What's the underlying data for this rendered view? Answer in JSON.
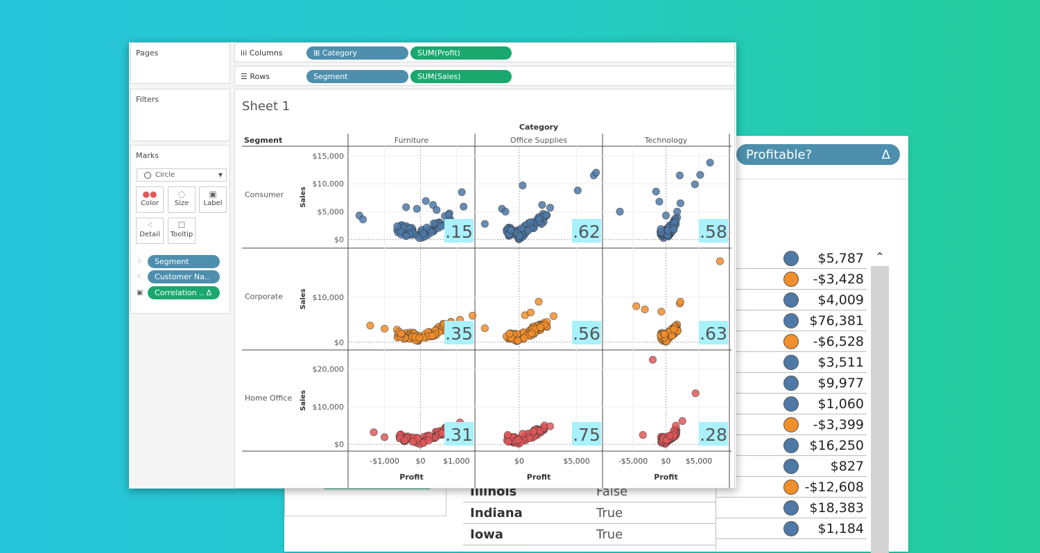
{
  "colors": {
    "consumer": "#4e79a7",
    "corporate": "#f28e2b",
    "home_office": "#e15759",
    "highlight": "#a8f1fd",
    "pill_blue": "#4d8fad",
    "pill_green": "#1aa86e"
  },
  "back_panel": {
    "profitable_pill": "Profitable?",
    "delta_icon": "Δ",
    "scroll_up_icon": "chevron-up-icon",
    "values": [
      {
        "amount": "$5,787",
        "profitable": true
      },
      {
        "amount": "-$3,428",
        "profitable": false
      },
      {
        "amount": "$4,009",
        "profitable": true
      },
      {
        "amount": "$76,381",
        "profitable": true
      },
      {
        "amount": "-$6,528",
        "profitable": false
      },
      {
        "amount": "$3,511",
        "profitable": true
      },
      {
        "amount": "$9,977",
        "profitable": true
      },
      {
        "amount": "$1,060",
        "profitable": true
      },
      {
        "amount": "-$3,399",
        "profitable": false
      },
      {
        "amount": "$16,250",
        "profitable": true
      },
      {
        "amount": "$827",
        "profitable": true
      },
      {
        "amount": "-$12,608",
        "profitable": false
      },
      {
        "amount": "$18,383",
        "profitable": true
      },
      {
        "amount": "$1,184",
        "profitable": true
      }
    ],
    "states": [
      {
        "name": "Illinois",
        "value": "False"
      },
      {
        "name": "Indiana",
        "value": "True"
      },
      {
        "name": "Iowa",
        "value": "True"
      }
    ]
  },
  "pages": {
    "title": "Pages"
  },
  "filters": {
    "title": "Filters"
  },
  "marks": {
    "title": "Marks",
    "mark_type": "Circle",
    "buttons": [
      {
        "label": "Color",
        "icon": "color-icon"
      },
      {
        "label": "Size",
        "icon": "size-icon"
      },
      {
        "label": "Label",
        "icon": "label-icon"
      },
      {
        "label": "Detail",
        "icon": "detail-icon"
      },
      {
        "label": "Tooltip",
        "icon": "tooltip-icon"
      }
    ],
    "fields": [
      {
        "label": "Segment",
        "icon": "color-icon"
      },
      {
        "label": "Customer Na..",
        "icon": "detail-icon"
      },
      {
        "label": "Correlation .. Δ",
        "icon": "label-icon"
      }
    ]
  },
  "columns": {
    "label": "Columns",
    "pills": [
      "⊞ Category",
      "SUM(Profit)"
    ]
  },
  "rows": {
    "label": "Rows",
    "pills": [
      "Segment",
      "SUM(Sales)"
    ]
  },
  "sheet": {
    "title": "Sheet 1"
  },
  "chart_data": {
    "type": "scatter",
    "category_header": "Category",
    "segment_header": "Segment",
    "categories": [
      "Furniture",
      "Office Supplies",
      "Technology"
    ],
    "segments": [
      "Consumer",
      "Corporate",
      "Home Office"
    ],
    "xlabel": "Profit",
    "ylabel": "Sales",
    "x_ticks": [
      [
        "-$1,000",
        "$0",
        "$1,000"
      ],
      [
        "$0",
        "$5,000"
      ],
      [
        "-$5,000",
        "$0",
        "$5,000"
      ]
    ],
    "y_ticks": [
      [
        "$15,000",
        "$10,000",
        "$5,000",
        "$0"
      ],
      [
        "$10,000",
        "$0"
      ],
      [
        "$20,000",
        "$10,000",
        "$0"
      ]
    ],
    "correlations": [
      [
        ".15",
        ".62",
        ".58"
      ],
      [
        ".35",
        ".56",
        ".63"
      ],
      [
        ".31",
        ".75",
        ".28"
      ]
    ],
    "outliers": {
      "consumer": [
        [
          [
            -1700,
            4300
          ],
          [
            -1600,
            3600
          ],
          [
            -400,
            5800
          ],
          [
            150,
            6900
          ],
          [
            350,
            6200
          ],
          [
            1150,
            8500
          ],
          [
            1200,
            5900
          ],
          [
            450,
            5300
          ],
          [
            -100,
            5500
          ]
        ],
        [
          [
            -3000,
            2800
          ],
          [
            -1500,
            5500
          ],
          [
            -1200,
            5000
          ],
          [
            300,
            9700
          ],
          [
            2000,
            6200
          ],
          [
            2700,
            5700
          ],
          [
            5100,
            8800
          ],
          [
            6500,
            11500
          ],
          [
            6700,
            12000
          ]
        ],
        [
          [
            -7000,
            5000
          ],
          [
            -1500,
            8600
          ],
          [
            -1000,
            6800
          ],
          [
            0,
            4300
          ],
          [
            1700,
            5000
          ],
          [
            2100,
            11500
          ],
          [
            2200,
            6500
          ],
          [
            4400,
            9900
          ],
          [
            5200,
            11600
          ],
          [
            6700,
            13800
          ]
        ]
      ],
      "corporate": [
        [
          [
            -1400,
            3700
          ],
          [
            -1000,
            3000
          ],
          [
            1100,
            5000
          ],
          [
            1450,
            5900
          ]
        ],
        [
          [
            -3000,
            3100
          ],
          [
            500,
            6000
          ],
          [
            1000,
            6600
          ],
          [
            1700,
            9000
          ],
          [
            3000,
            5800
          ]
        ],
        [
          [
            -4500,
            8000
          ],
          [
            -3200,
            7300
          ],
          [
            -700,
            6800
          ],
          [
            2100,
            8600
          ],
          [
            2200,
            9000
          ],
          [
            8200,
            18000
          ]
        ]
      ],
      "home_office": [
        [
          [
            -1300,
            3200
          ],
          [
            -1000,
            1900
          ],
          [
            600,
            3000
          ],
          [
            1100,
            5800
          ]
        ],
        [
          [
            -1000,
            2500
          ],
          [
            300,
            2800
          ],
          [
            2200,
            5000
          ],
          [
            2700,
            4800
          ]
        ],
        [
          [
            -3500,
            2500
          ],
          [
            -2000,
            22500
          ],
          [
            1500,
            5000
          ],
          [
            2500,
            6200
          ],
          [
            4500,
            13600
          ]
        ]
      ]
    }
  }
}
